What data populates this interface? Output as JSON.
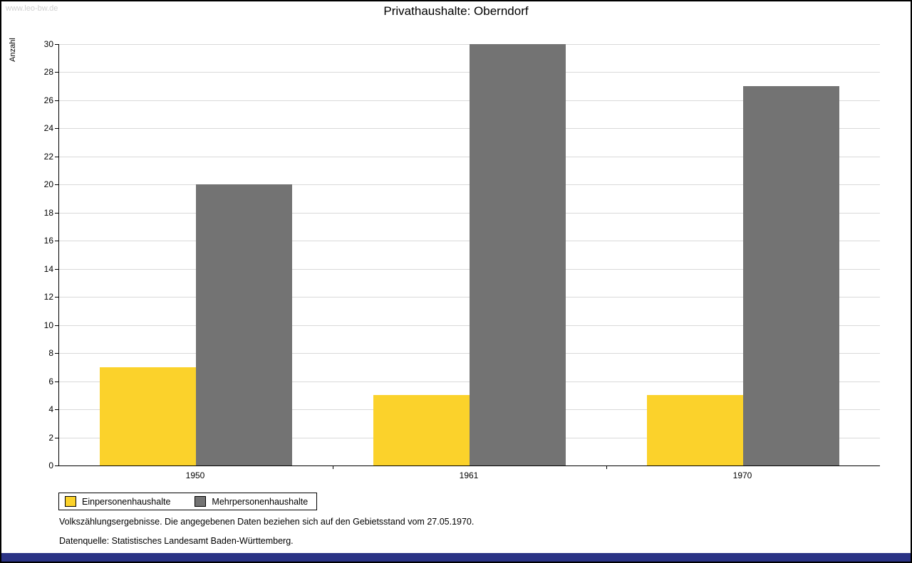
{
  "page": {
    "watermark": "www.leo-bw.de",
    "title": "Privathaushalte: Oberndorf",
    "footnote1": "Volkszählungsergebnisse. Die angegebenen Daten beziehen sich auf den Gebietsstand vom 27.05.1970.",
    "footnote2": "Datenquelle: Statistisches Landesamt Baden-Württemberg.",
    "bottom_bar_color": "#2b3385"
  },
  "chart_data": {
    "type": "bar",
    "title": "Privathaushalte: Oberndorf",
    "categories": [
      "1950",
      "1961",
      "1970"
    ],
    "series": [
      {
        "name": "Einpersonenhaushalte",
        "color": "#fbd22b",
        "values": [
          7,
          5,
          5
        ]
      },
      {
        "name": "Mehrpersonenhaushalte",
        "color": "#737373",
        "values": [
          20,
          30,
          27
        ]
      }
    ],
    "xlabel": "",
    "ylabel": "Anzahl",
    "ylim": [
      0,
      30
    ],
    "ytick_step": 2,
    "grid": true,
    "grid_color": "#d9d9d9",
    "legend_position": "bottom-left"
  }
}
